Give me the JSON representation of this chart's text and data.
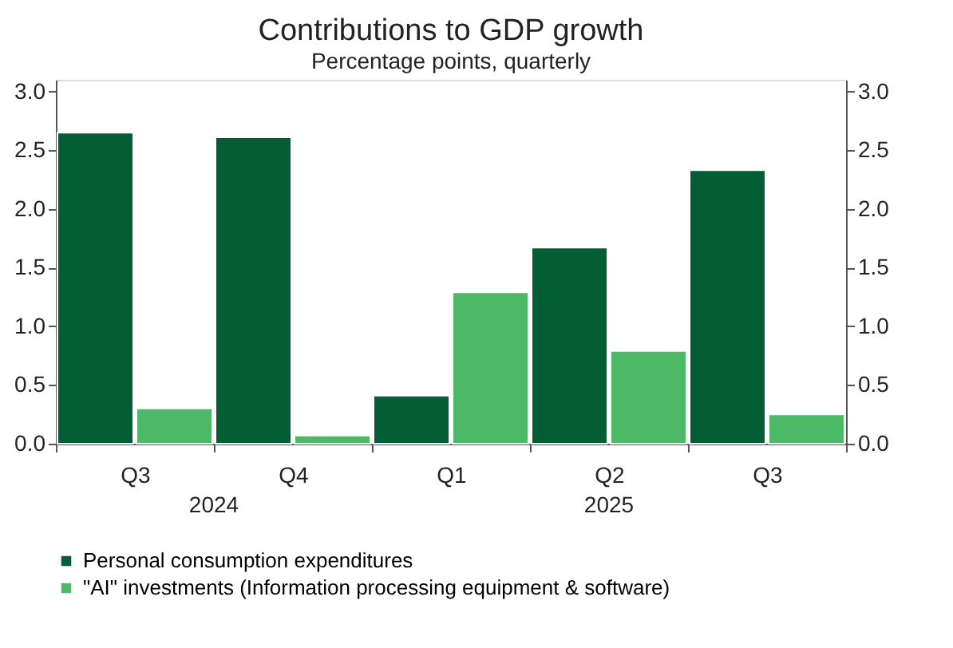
{
  "chart_data": {
    "type": "bar",
    "title": "Contributions to GDP growth",
    "subtitle": "Percentage points, quarterly",
    "categories": [
      "Q3",
      "Q4",
      "Q1",
      "Q2",
      "Q3"
    ],
    "series": [
      {
        "name": "Personal consumption expenditures",
        "color": "#035e35",
        "values": [
          2.65,
          2.61,
          0.41,
          1.67,
          2.33
        ]
      },
      {
        "name": "\"AI\" investments (Information processing equipment & software)",
        "color": "#4cb966",
        "values": [
          0.3,
          0.07,
          1.29,
          0.79,
          0.25
        ]
      }
    ],
    "annotations": [
      "2024",
      "2025"
    ],
    "ylim": [
      0,
      3.1
    ],
    "yticks": [
      {
        "value": 0,
        "label": "0.0"
      },
      0.5,
      {
        "value": 1,
        "label": "1.0"
      },
      1.5,
      {
        "value": 2,
        "label": "2.0"
      },
      2.5,
      {
        "value": 3,
        "label": "3.0"
      }
    ],
    "y2lim": [
      0,
      3.1
    ],
    "y2ticks": [
      {
        "value": 0,
        "label": "0.0"
      },
      0.5,
      {
        "value": 1,
        "label": "1.0"
      },
      1.5,
      {
        "value": 2,
        "label": "2.0"
      },
      2.5,
      {
        "value": 3,
        "label": "3.0"
      }
    ],
    "grid": false,
    "legend": "bottom"
  }
}
